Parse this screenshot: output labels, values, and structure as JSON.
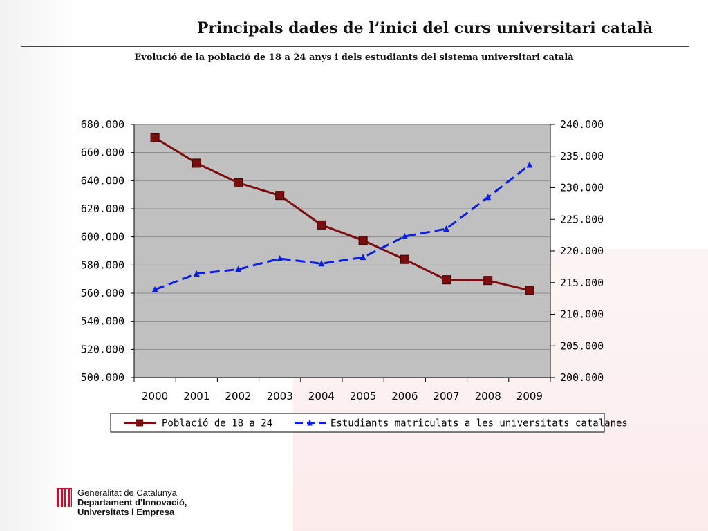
{
  "slide": {
    "title": "Principals dades de l’inici del curs universitari català"
  },
  "footer": {
    "line1": "Generalitat de Catalunya",
    "line2": "Departament d'Innovació,",
    "line3": "Universitats i Empresa"
  },
  "colors": {
    "series1": "#7b0d0d",
    "series2": "#0a1ee6",
    "plot_bg": "#c0c0c0"
  },
  "chart_data": {
    "type": "line",
    "title": "Evolució de la població de 18 a 24 anys i dels estudiants del sistema universitari català",
    "categories": [
      "2000",
      "2001",
      "2002",
      "2003",
      "2004",
      "2005",
      "2006",
      "2007",
      "2008",
      "2009"
    ],
    "y_left": {
      "ylim": [
        500000,
        680000
      ],
      "ticks": [
        "500.000",
        "520.000",
        "540.000",
        "560.000",
        "580.000",
        "600.000",
        "620.000",
        "640.000",
        "660.000",
        "680.000"
      ]
    },
    "y_right": {
      "ylim": [
        200000,
        240000
      ],
      "ticks": [
        "200.000",
        "205.000",
        "210.000",
        "215.000",
        "220.000",
        "225.000",
        "230.000",
        "235.000",
        "240.000"
      ]
    },
    "grid": true,
    "legend_position": "bottom",
    "series": [
      {
        "name": "Població de 18 a 24",
        "axis": "left",
        "marker": "square",
        "line": "solid",
        "values": [
          670500,
          652500,
          638500,
          629500,
          608500,
          597500,
          584000,
          569500,
          569000,
          562000
        ]
      },
      {
        "name": "Estudiants matriculats a les universitats catalanes",
        "axis": "right",
        "marker": "triangle",
        "line": "dashed",
        "values": [
          213900,
          216400,
          217100,
          218800,
          218000,
          219000,
          222300,
          223500,
          228500,
          233600
        ]
      }
    ]
  }
}
